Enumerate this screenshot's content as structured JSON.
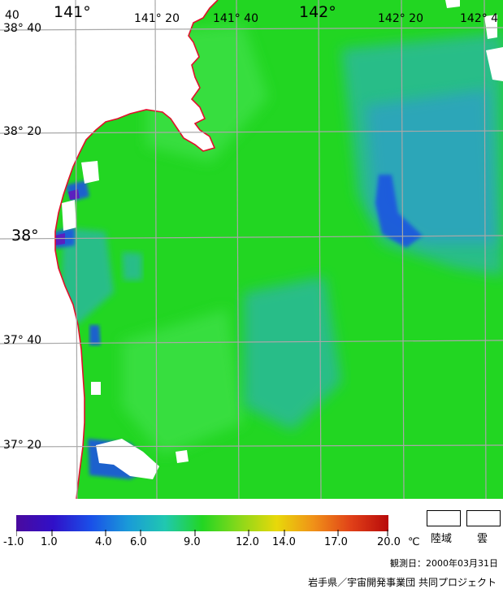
{
  "map": {
    "colors": {
      "water_base": "#22d622",
      "water_light": "#3ee046",
      "cool_teal": "#2ab99a",
      "cool_blue": "#2f9fc8",
      "cold_blue": "#1a55e0",
      "cold_purple": "#5b1fbf",
      "land_or_cloud": "#ffffff",
      "coastline": "#e0102a",
      "grid_line": "#a8a8a8"
    },
    "lon_labels": [
      {
        "text": "141°",
        "big": true
      },
      {
        "text": "141° 20",
        "big": false
      },
      {
        "text": "141° 40",
        "big": false
      },
      {
        "text": "142°",
        "big": true
      },
      {
        "text": "142° 20",
        "big": false
      },
      {
        "text": "142° 4",
        "big": false
      }
    ],
    "lat_labels": [
      {
        "text": "38° 40",
        "big": false
      },
      {
        "text": "38° 20",
        "big": false
      },
      {
        "text": "38°",
        "big": true
      },
      {
        "text": "37° 40",
        "big": false
      },
      {
        "text": "37° 20",
        "big": false
      }
    ],
    "corner_label": "40"
  },
  "legend": {
    "gradient_stops": [
      "#4a0a9e",
      "#3010c8",
      "#1a4fe8",
      "#1a9ad8",
      "#20c8b0",
      "#22d622",
      "#8ad81a",
      "#e8d80a",
      "#f09018",
      "#e04018",
      "#b80a0a"
    ],
    "ticks": [
      "-1.0",
      "1.0",
      "4.0",
      "6.0",
      "9.0",
      "12.0",
      "14.0",
      "17.0",
      "20.0"
    ],
    "unit": "℃",
    "land_label": "陸域",
    "cloud_label": "雲"
  },
  "observation_date": "観測日：2000年03月31日",
  "credit": "岩手県／宇宙開発事業団 共同プロジェクト"
}
